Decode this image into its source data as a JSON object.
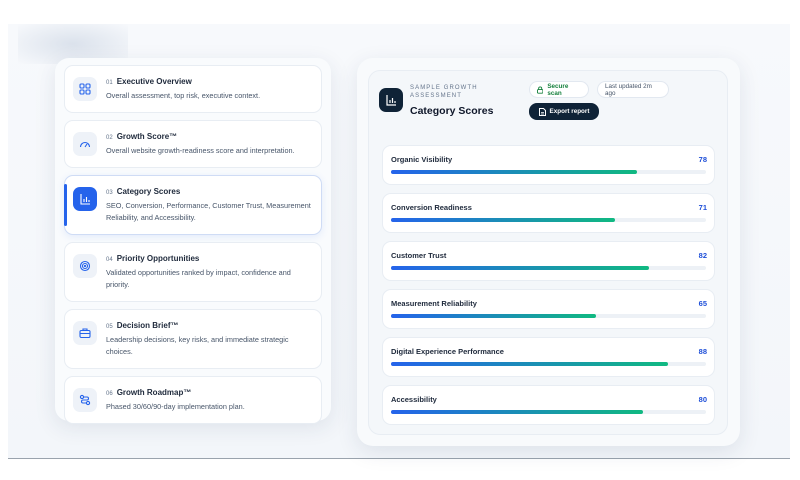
{
  "nav": {
    "items": [
      {
        "number": "01",
        "title": "Executive Overview",
        "description": "Overall assessment, top risk, executive context."
      },
      {
        "number": "02",
        "title": "Growth Score™",
        "description": "Overall website growth-readiness score and interpretation."
      },
      {
        "number": "03",
        "title": "Category Scores",
        "description": "SEO, Conversion, Performance, Customer Trust, Measurement Reliability, and Accessibility."
      },
      {
        "number": "04",
        "title": "Priority Opportunities",
        "description": "Validated opportunities ranked by impact, confidence and priority."
      },
      {
        "number": "05",
        "title": "Decision Brief™",
        "description": "Leadership decisions, key risks, and immediate strategic choices."
      },
      {
        "number": "06",
        "title": "Growth Roadmap™",
        "description": "Phased 30/60/90-day implementation plan."
      }
    ]
  },
  "panel": {
    "eyebrow": "SAMPLE GROWTH ASSESSMENT",
    "title": "Category Scores",
    "secure": "Secure scan",
    "updated": "Last updated 2m ago",
    "button": "Export report",
    "scores": [
      {
        "label": "Organic Visibility",
        "value": 78
      },
      {
        "label": "Conversion Readiness",
        "value": 71
      },
      {
        "label": "Customer Trust",
        "value": 82
      },
      {
        "label": "Measurement Reliability",
        "value": 65
      },
      {
        "label": "Digital Experience Performance",
        "value": 88
      },
      {
        "label": "Accessibility",
        "value": 80
      }
    ]
  }
}
